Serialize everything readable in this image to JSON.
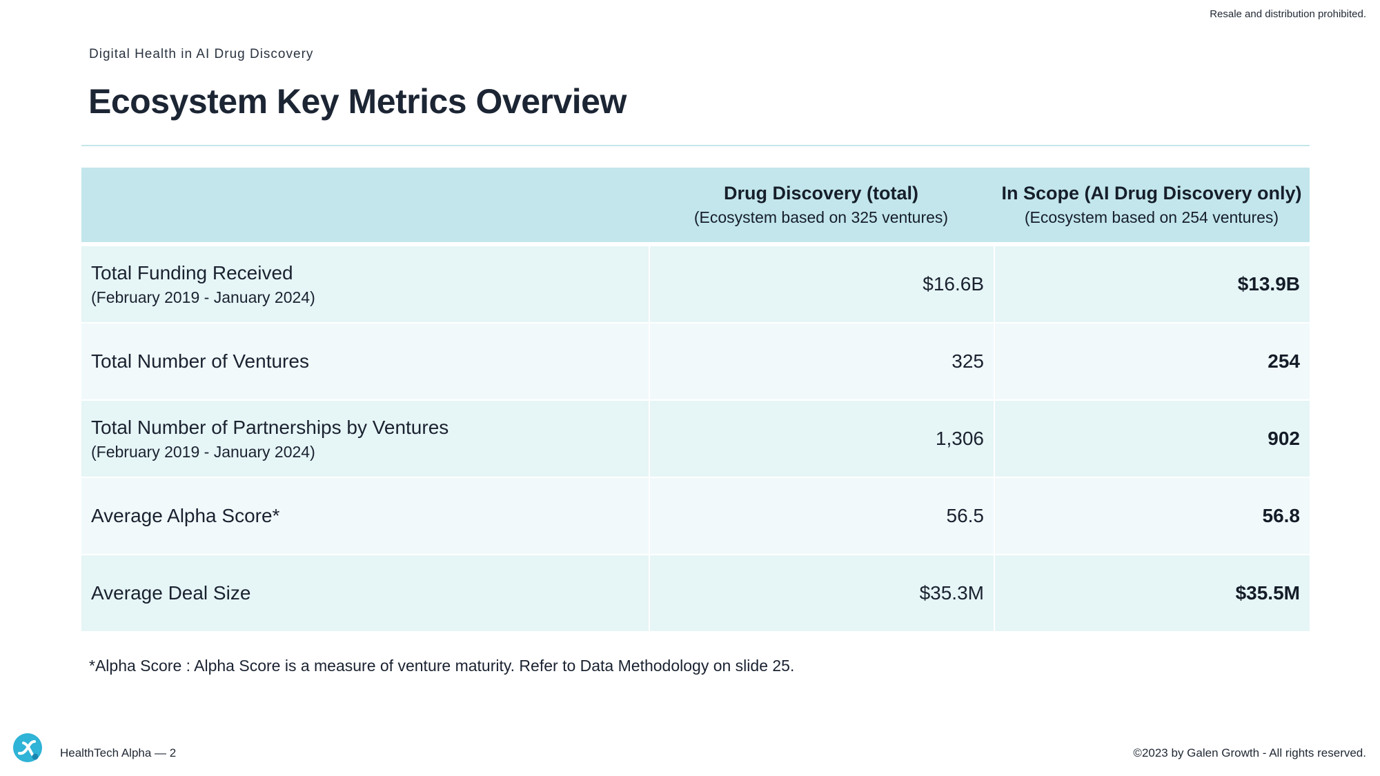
{
  "header": {
    "disclaimer": "Resale and distribution prohibited.",
    "eyebrow": "Digital Health in AI Drug Discovery",
    "title": "Ecosystem Key Metrics Overview"
  },
  "table": {
    "columns": [
      {
        "title": "Drug Discovery (total)",
        "subtitle": "(Ecosystem based on 325 ventures)"
      },
      {
        "title": "In Scope (AI Drug Discovery only)",
        "subtitle": "(Ecosystem based on 254 ventures)"
      }
    ],
    "rows": [
      {
        "label": "Total Funding Received",
        "sublabel": "(February 2019 - January 2024)",
        "total": "$16.6B",
        "in_scope": "$13.9B"
      },
      {
        "label": "Total Number of Ventures",
        "sublabel": "",
        "total": "325",
        "in_scope": "254"
      },
      {
        "label": "Total Number of Partnerships by Ventures",
        "sublabel": "(February 2019 - January 2024)",
        "total": "1,306",
        "in_scope": "902"
      },
      {
        "label": "Average Alpha Score*",
        "sublabel": "",
        "total": "56.5",
        "in_scope": "56.8"
      },
      {
        "label": "Average Deal Size",
        "sublabel": "",
        "total": "$35.3M",
        "in_scope": "$35.5M"
      }
    ]
  },
  "footnote": "*Alpha Score : Alpha Score is a measure of venture maturity. Refer to Data Methodology on slide 25.",
  "footer": {
    "left": "HealthTech Alpha  —  2",
    "right": "©2023 by Galen Growth  - All rights reserved."
  },
  "colors": {
    "header_band": "#c2e6ec",
    "row_odd": "#e6f5f6",
    "row_even": "#f1f9fb",
    "rule": "#c3e6ea",
    "logo_accent": "#2fb3d6"
  }
}
